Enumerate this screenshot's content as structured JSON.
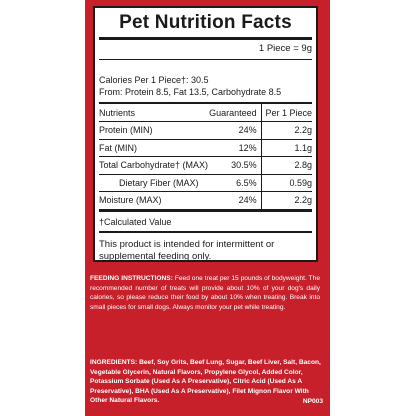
{
  "panel": {
    "title": "Pet Nutrition Facts",
    "serving": "1 Piece = 9g",
    "calories_line": "Calories Per 1 Piece†: 30.5",
    "from_line": "From: Protein 8.5, Fat 13.5, Carbohydrate 8.5",
    "table": {
      "headers": {
        "name": "Nutrients",
        "guaranteed": "Guaranteed",
        "per": "Per 1 Piece"
      },
      "rows": [
        {
          "name": "Protein (MIN)",
          "guaranteed": "24%",
          "per": "2.2g"
        },
        {
          "name": "Fat (MIN)",
          "guaranteed": "12%",
          "per": "1.1g"
        },
        {
          "name": "Total Carbohydrate† (MAX)",
          "guaranteed": "30.5%",
          "per": "2.8g"
        },
        {
          "name": "Dietary Fiber (MAX)",
          "guaranteed": "6.5%",
          "per": "0.59g"
        },
        {
          "name": "Moisture (MAX)",
          "guaranteed": "24%",
          "per": "2.2g"
        }
      ]
    },
    "calculated_note": "†Calculated Value",
    "intended_note": "This product is intended for intermittent or supplemental feeding only."
  },
  "feeding": {
    "heading": "FEEDING INSTRUCTIONS:",
    "text": "Feed one treat per 15 pounds of bodyweight. The recommended number of treats will provide about 10% of your dog's daily calories, so please reduce their food by about 10% when treating. Break into small pieces for small dogs. Always monitor your pet while treating."
  },
  "ingredients": {
    "heading": "INGREDIENTS:",
    "text": "Beef, Soy Grits, Beef Lung, Sugar, Beef Liver, Salt, Bacon, Vegetable Glycerin, Natural Flavors, Propylene Glycol, Added Color, Potassium Sorbate (Used As A Preservative), Citric Acid (Used As A Preservative), BHA (Used As A Preservative), Filet Mignon Flavor With Other Natural Flavors."
  },
  "code": "NP003",
  "colors": {
    "label_red": "#c8202a",
    "panel_white": "#ffffff",
    "ink": "#1a1a1a"
  }
}
